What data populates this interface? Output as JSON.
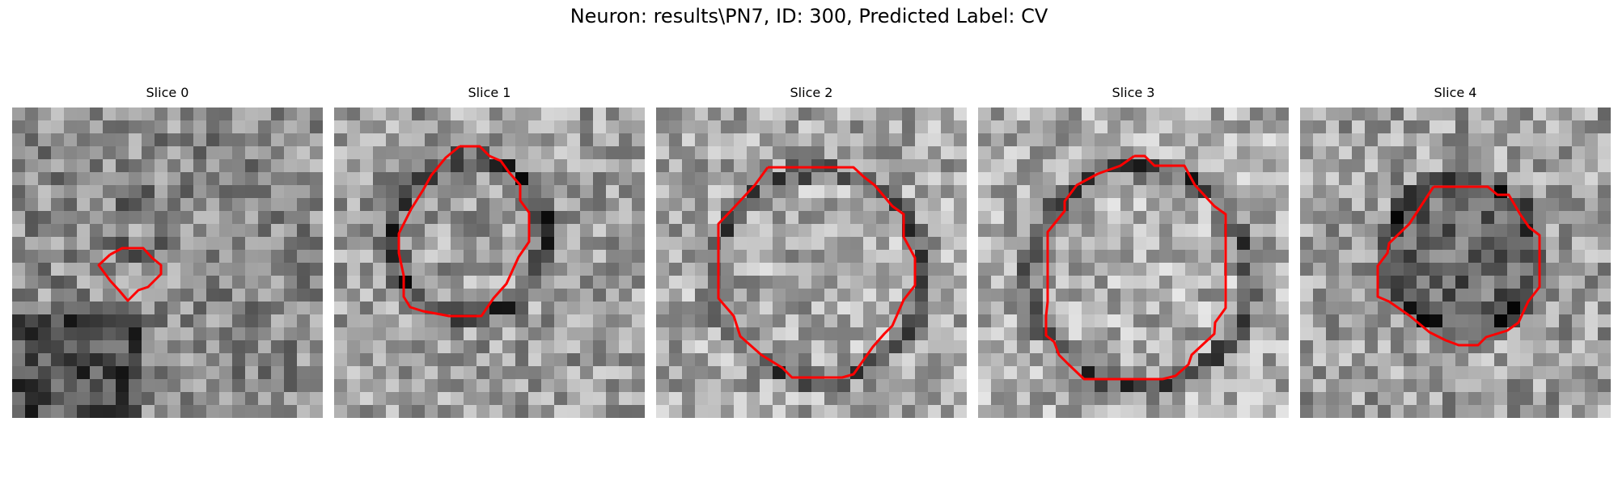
{
  "figure": {
    "title": "Neuron: results\\PN7, ID: 300, Predicted Label: CV",
    "contour_color": "#ff0000",
    "slices": [
      {
        "label": "Slice 0"
      },
      {
        "label": "Slice 1"
      },
      {
        "label": "Slice 2"
      },
      {
        "label": "Slice 3"
      },
      {
        "label": "Slice 4"
      }
    ]
  }
}
